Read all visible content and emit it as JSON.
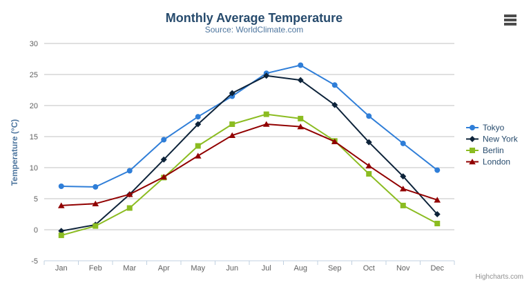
{
  "chart": {
    "credits_label": "Highcharts.com",
    "export_icon": "hamburger-menu-icon"
  },
  "chart_data": {
    "type": "line",
    "title": "Monthly Average Temperature",
    "subtitle": "Source: WorldClimate.com",
    "xlabel": "",
    "ylabel": "Temperature (°C)",
    "categories": [
      "Jan",
      "Feb",
      "Mar",
      "Apr",
      "May",
      "Jun",
      "Jul",
      "Aug",
      "Sep",
      "Oct",
      "Nov",
      "Dec"
    ],
    "ylim": [
      -5,
      30
    ],
    "yticks": [
      -5,
      0,
      5,
      10,
      15,
      20,
      25,
      30
    ],
    "grid": true,
    "legend_position": "right",
    "colors": {
      "title": "#274b6d",
      "subtitle": "#4d759e",
      "axis_labels": "#606060",
      "gridline": "#c0c0c0",
      "axis_line": "#c0d0e0",
      "legend_text": "#274b6d",
      "credits": "#909090",
      "export_icon": "#4c4c4c"
    },
    "series": [
      {
        "name": "Tokyo",
        "color": "#2f7ed8",
        "marker": "circle",
        "values": [
          7.0,
          6.9,
          9.5,
          14.5,
          18.2,
          21.5,
          25.2,
          26.5,
          23.3,
          18.3,
          13.9,
          9.6
        ]
      },
      {
        "name": "New York",
        "color": "#0d233a",
        "marker": "diamond",
        "values": [
          -0.2,
          0.8,
          5.7,
          11.3,
          17.0,
          22.0,
          24.8,
          24.1,
          20.1,
          14.1,
          8.6,
          2.5
        ]
      },
      {
        "name": "Berlin",
        "color": "#8bbc21",
        "marker": "square",
        "values": [
          -0.9,
          0.6,
          3.5,
          8.4,
          13.5,
          17.0,
          18.6,
          17.9,
          14.3,
          9.0,
          3.9,
          1.0
        ]
      },
      {
        "name": "London",
        "color": "#910000",
        "marker": "triangle",
        "values": [
          3.9,
          4.2,
          5.7,
          8.5,
          11.9,
          15.2,
          17.0,
          16.6,
          14.2,
          10.3,
          6.6,
          4.8
        ]
      }
    ]
  }
}
